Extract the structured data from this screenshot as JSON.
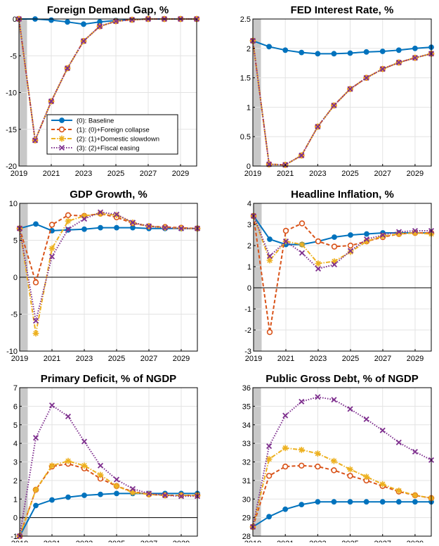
{
  "colors": {
    "baseline": "#0072BD",
    "foreign_collapse": "#D95319",
    "domestic_slowdown": "#EDB120",
    "fiscal_easing": "#7E2F8E",
    "shade": "#c8c8c8",
    "grid": "#e3e3e3"
  },
  "legend": {
    "placement": "lower-right of first panel",
    "entries": [
      {
        "key": "baseline",
        "label": "(0): Baseline",
        "marker": "circle-filled",
        "dash": "solid"
      },
      {
        "key": "foreign_collapse",
        "label": "(1): (0)+Foreign collapse",
        "marker": "circle-open",
        "dash": "dashed"
      },
      {
        "key": "domestic_slowdown",
        "label": "(2): (1)+Domestic slowdown",
        "marker": "asterisk",
        "dash": "dashdot"
      },
      {
        "key": "fiscal_easing",
        "label": "(3): (2)+Fiscal easing",
        "marker": "x",
        "dash": "dotted"
      }
    ]
  },
  "chart_data": [
    {
      "type": "line",
      "title": "Foreign Demand Gap, %",
      "x": [
        2019,
        2020,
        2021,
        2022,
        2023,
        2024,
        2025,
        2026,
        2027,
        2028,
        2029,
        2030
      ],
      "xlim": [
        2019,
        2030
      ],
      "ylim": [
        -20,
        0
      ],
      "yticks": [
        0,
        -5,
        -10,
        -15,
        -20
      ],
      "xticks": [
        2019,
        2021,
        2023,
        2025,
        2027,
        2029
      ],
      "shaded_x": [
        2019,
        2019.5
      ],
      "zero_line": false,
      "grid": true,
      "series": [
        {
          "name": "(0): Baseline",
          "key": "baseline",
          "values": [
            0,
            0,
            -0.15,
            -0.4,
            -0.7,
            -0.4,
            -0.2,
            -0.1,
            0,
            0,
            0,
            0
          ]
        },
        {
          "name": "(1): (0)+Foreign collapse",
          "key": "foreign_collapse",
          "values": [
            0,
            -16.5,
            -11.2,
            -6.7,
            -3.0,
            -1.0,
            -0.3,
            -0.1,
            0,
            0,
            0,
            0
          ]
        },
        {
          "name": "(2): (1)+Domestic slowdown",
          "key": "domestic_slowdown",
          "values": [
            0,
            -16.5,
            -11.2,
            -6.7,
            -3.0,
            -1.0,
            -0.3,
            -0.1,
            0,
            0,
            0,
            0
          ]
        },
        {
          "name": "(3): (2)+Fiscal easing",
          "key": "fiscal_easing",
          "values": [
            0,
            -16.5,
            -11.2,
            -6.7,
            -3.0,
            -1.0,
            -0.3,
            -0.1,
            0,
            0,
            0,
            0
          ]
        }
      ]
    },
    {
      "type": "line",
      "title": "FED Interest Rate, %",
      "x": [
        2019,
        2020,
        2021,
        2022,
        2023,
        2024,
        2025,
        2026,
        2027,
        2028,
        2029,
        2030
      ],
      "xlim": [
        2019,
        2030
      ],
      "ylim": [
        0,
        2.5
      ],
      "yticks": [
        2.5,
        2,
        1.5,
        1,
        0.5,
        0
      ],
      "xticks": [
        2019,
        2021,
        2023,
        2025,
        2027,
        2029
      ],
      "shaded_x": [
        2019,
        2019.5
      ],
      "zero_line": false,
      "grid": true,
      "series": [
        {
          "name": "(0): Baseline",
          "key": "baseline",
          "values": [
            2.13,
            2.03,
            1.97,
            1.93,
            1.91,
            1.91,
            1.92,
            1.94,
            1.95,
            1.97,
            2.0,
            2.02
          ]
        },
        {
          "name": "(1): (0)+Foreign collapse",
          "key": "foreign_collapse",
          "values": [
            2.13,
            0.03,
            0.02,
            0.18,
            0.67,
            1.03,
            1.31,
            1.5,
            1.65,
            1.76,
            1.84,
            1.91
          ]
        },
        {
          "name": "(2): (1)+Domestic slowdown",
          "key": "domestic_slowdown",
          "values": [
            2.13,
            0.03,
            0.02,
            0.18,
            0.67,
            1.03,
            1.31,
            1.5,
            1.65,
            1.76,
            1.84,
            1.91
          ]
        },
        {
          "name": "(3): (2)+Fiscal easing",
          "key": "fiscal_easing",
          "values": [
            2.13,
            0.03,
            0.02,
            0.18,
            0.67,
            1.03,
            1.31,
            1.5,
            1.65,
            1.76,
            1.84,
            1.91
          ]
        }
      ]
    },
    {
      "type": "line",
      "title": "GDP Growth, %",
      "x": [
        2019,
        2020,
        2021,
        2022,
        2023,
        2024,
        2025,
        2026,
        2027,
        2028,
        2029,
        2030
      ],
      "xlim": [
        2019,
        2030
      ],
      "ylim": [
        -10,
        10
      ],
      "yticks": [
        10,
        5,
        0,
        -5,
        -10
      ],
      "xticks": [
        2019,
        2021,
        2023,
        2025,
        2027,
        2029
      ],
      "shaded_x": [
        2019,
        2019.5
      ],
      "zero_line": true,
      "grid": true,
      "series": [
        {
          "name": "(0): Baseline",
          "key": "baseline",
          "values": [
            6.6,
            7.2,
            6.3,
            6.4,
            6.5,
            6.7,
            6.7,
            6.7,
            6.6,
            6.6,
            6.6,
            6.6
          ]
        },
        {
          "name": "(1): (0)+Foreign collapse",
          "key": "foreign_collapse",
          "values": [
            6.6,
            -0.7,
            7.1,
            8.4,
            8.3,
            8.6,
            8.1,
            7.3,
            6.9,
            6.8,
            6.7,
            6.6
          ]
        },
        {
          "name": "(2): (1)+Domestic slowdown",
          "key": "domestic_slowdown",
          "values": [
            6.6,
            -7.6,
            3.9,
            7.6,
            8.3,
            8.6,
            8.4,
            7.4,
            6.9,
            6.7,
            6.6,
            6.6
          ]
        },
        {
          "name": "(3): (2)+Fiscal easing",
          "key": "fiscal_easing",
          "values": [
            6.6,
            -5.9,
            2.8,
            6.5,
            7.9,
            8.8,
            8.5,
            7.4,
            6.9,
            6.7,
            6.6,
            6.6
          ]
        }
      ]
    },
    {
      "type": "line",
      "title": "Headline Inflation, %",
      "x": [
        2019,
        2020,
        2021,
        2022,
        2023,
        2024,
        2025,
        2026,
        2027,
        2028,
        2029,
        2030
      ],
      "xlim": [
        2019,
        2030
      ],
      "ylim": [
        -3,
        4
      ],
      "yticks": [
        4,
        3,
        2,
        1,
        0,
        -1,
        -2,
        -3
      ],
      "xticks": [
        2019,
        2021,
        2023,
        2025,
        2027,
        2029
      ],
      "shaded_x": [
        2019,
        2019.5
      ],
      "zero_line": true,
      "grid": true,
      "series": [
        {
          "name": "(0): Baseline",
          "key": "baseline",
          "values": [
            3.4,
            2.3,
            2.05,
            2.05,
            2.2,
            2.4,
            2.5,
            2.55,
            2.6,
            2.6,
            2.6,
            2.6
          ]
        },
        {
          "name": "(1): (0)+Foreign collapse",
          "key": "foreign_collapse",
          "values": [
            3.4,
            -2.1,
            2.7,
            3.05,
            2.2,
            1.95,
            2.0,
            2.2,
            2.4,
            2.55,
            2.6,
            2.6
          ]
        },
        {
          "name": "(2): (1)+Domestic slowdown",
          "key": "domestic_slowdown",
          "values": [
            3.4,
            1.3,
            2.2,
            2.05,
            1.15,
            1.25,
            1.7,
            2.2,
            2.45,
            2.55,
            2.6,
            2.55
          ]
        },
        {
          "name": "(3): (2)+Fiscal easing",
          "key": "fiscal_easing",
          "values": [
            3.4,
            1.5,
            2.2,
            1.65,
            0.9,
            1.1,
            1.75,
            2.3,
            2.5,
            2.65,
            2.7,
            2.7
          ]
        }
      ]
    },
    {
      "type": "line",
      "title": "Primary Deficit, % of NGDP",
      "x": [
        2019,
        2020,
        2021,
        2022,
        2023,
        2024,
        2025,
        2026,
        2027,
        2028,
        2029,
        2030
      ],
      "xlim": [
        2019,
        2030
      ],
      "ylim": [
        -1,
        7
      ],
      "yticks": [
        7,
        6,
        5,
        4,
        3,
        2,
        1,
        0,
        -1
      ],
      "xticks": [
        2019,
        2021,
        2023,
        2025,
        2027,
        2029
      ],
      "shaded_x": [
        2019,
        2019.5
      ],
      "zero_line": true,
      "grid": true,
      "series": [
        {
          "name": "(0): Baseline",
          "key": "baseline",
          "values": [
            -1,
            0.65,
            0.95,
            1.1,
            1.2,
            1.25,
            1.3,
            1.3,
            1.3,
            1.3,
            1.3,
            1.3
          ]
        },
        {
          "name": "(1): (0)+Foreign collapse",
          "key": "foreign_collapse",
          "values": [
            -1,
            1.5,
            2.75,
            2.9,
            2.65,
            2.1,
            1.7,
            1.4,
            1.25,
            1.2,
            1.2,
            1.2
          ]
        },
        {
          "name": "(2): (1)+Domestic slowdown",
          "key": "domestic_slowdown",
          "values": [
            -1,
            1.5,
            2.8,
            3.05,
            2.8,
            2.3,
            1.7,
            1.35,
            1.25,
            1.2,
            1.2,
            1.2
          ]
        },
        {
          "name": "(3): (2)+Fiscal easing",
          "key": "fiscal_easing",
          "values": [
            -1,
            4.3,
            6.05,
            5.45,
            4.1,
            2.8,
            2.05,
            1.55,
            1.3,
            1.2,
            1.15,
            1.15
          ]
        }
      ]
    },
    {
      "type": "line",
      "title": "Public Gross Debt, % of NGDP",
      "x": [
        2019,
        2020,
        2021,
        2022,
        2023,
        2024,
        2025,
        2026,
        2027,
        2028,
        2029,
        2030
      ],
      "xlim": [
        2019,
        2030
      ],
      "ylim": [
        28,
        36
      ],
      "yticks": [
        36,
        35,
        34,
        33,
        32,
        31,
        30,
        29,
        28
      ],
      "xticks": [
        2019,
        2021,
        2023,
        2025,
        2027,
        2029
      ],
      "shaded_x": [
        2019,
        2019.5
      ],
      "zero_line": false,
      "grid": true,
      "series": [
        {
          "name": "(0): Baseline",
          "key": "baseline",
          "values": [
            28.5,
            29.05,
            29.45,
            29.7,
            29.85,
            29.85,
            29.85,
            29.85,
            29.85,
            29.85,
            29.85,
            29.85
          ]
        },
        {
          "name": "(1): (0)+Foreign collapse",
          "key": "foreign_collapse",
          "values": [
            28.5,
            31.25,
            31.75,
            31.8,
            31.75,
            31.55,
            31.25,
            31.0,
            30.7,
            30.4,
            30.2,
            30.05
          ]
        },
        {
          "name": "(2): (1)+Domestic slowdown",
          "key": "domestic_slowdown",
          "values": [
            28.5,
            32.15,
            32.75,
            32.65,
            32.45,
            32.05,
            31.6,
            31.2,
            30.8,
            30.45,
            30.2,
            30.05
          ]
        },
        {
          "name": "(3): (2)+Fiscal easing",
          "key": "fiscal_easing",
          "values": [
            28.5,
            32.85,
            34.5,
            35.25,
            35.5,
            35.35,
            34.85,
            34.3,
            33.7,
            33.05,
            32.55,
            32.1
          ]
        }
      ]
    }
  ]
}
